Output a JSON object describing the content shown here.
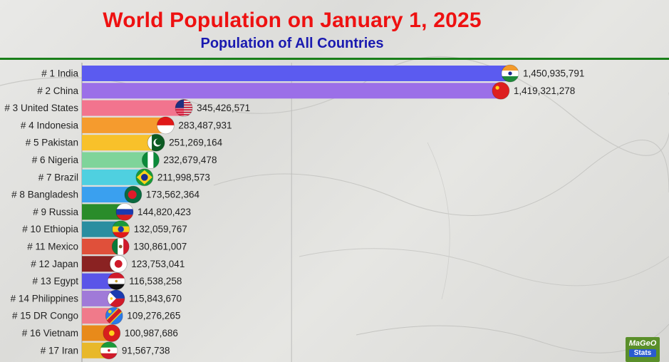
{
  "header": {
    "title": "World Population on January 1, 2025",
    "subtitle": "Population of All Countries"
  },
  "logo": {
    "main": "MaGeO",
    "sub": "Stats"
  },
  "chart_data": {
    "type": "bar",
    "orientation": "horizontal",
    "title": "World Population on January 1, 2025",
    "subtitle": "Population of All Countries",
    "xlim": [
      0,
      1800000000
    ],
    "grid": true,
    "categories": [
      "# 1 India",
      "# 2 China",
      "# 3 United States",
      "# 4 Indonesia",
      "# 5 Pakistan",
      "# 6 Nigeria",
      "# 7 Brazil",
      "# 8 Bangladesh",
      "# 9 Russia",
      "# 10 Ethiopia",
      "# 11 Mexico",
      "# 12 Japan",
      "# 13 Egypt",
      "# 14 Philippines",
      "# 15 DR Congo",
      "# 16 Vietnam",
      "# 17 Iran"
    ],
    "values": [
      1450935791,
      1419321278,
      345426571,
      283487931,
      251269164,
      232679478,
      211998573,
      173562364,
      144820423,
      132059767,
      130861007,
      123753041,
      116538258,
      115843670,
      109276265,
      100987686,
      91567738
    ],
    "value_labels": [
      "1,450,935,791",
      "1,419,321,278",
      "345,426,571",
      "283,487,931",
      "251,269,164",
      "232,679,478",
      "211,998,573",
      "173,562,364",
      "144,820,423",
      "132,059,767",
      "130,861,007",
      "123,753,041",
      "116,538,258",
      "115,843,670",
      "109,276,265",
      "100,987,686",
      "91,567,738"
    ],
    "colors": [
      "#5b5bf0",
      "#9b6fe8",
      "#f2748e",
      "#f59b2e",
      "#f8c12a",
      "#7fd49a",
      "#4fd0e0",
      "#3aa0ef",
      "#2a8c2a",
      "#2a8ea0",
      "#e0503a",
      "#8a2222",
      "#5a55e8",
      "#a07ad8",
      "#f07a8a",
      "#e88a1a",
      "#e8b82a"
    ],
    "flags": [
      "india-flag",
      "china-flag",
      "usa-flag",
      "indonesia-flag",
      "pakistan-flag",
      "nigeria-flag",
      "brazil-flag",
      "bangladesh-flag",
      "russia-flag",
      "ethiopia-flag",
      "mexico-flag",
      "japan-flag",
      "egypt-flag",
      "philippines-flag",
      "drcongo-flag",
      "vietnam-flag",
      "iran-flag"
    ]
  }
}
